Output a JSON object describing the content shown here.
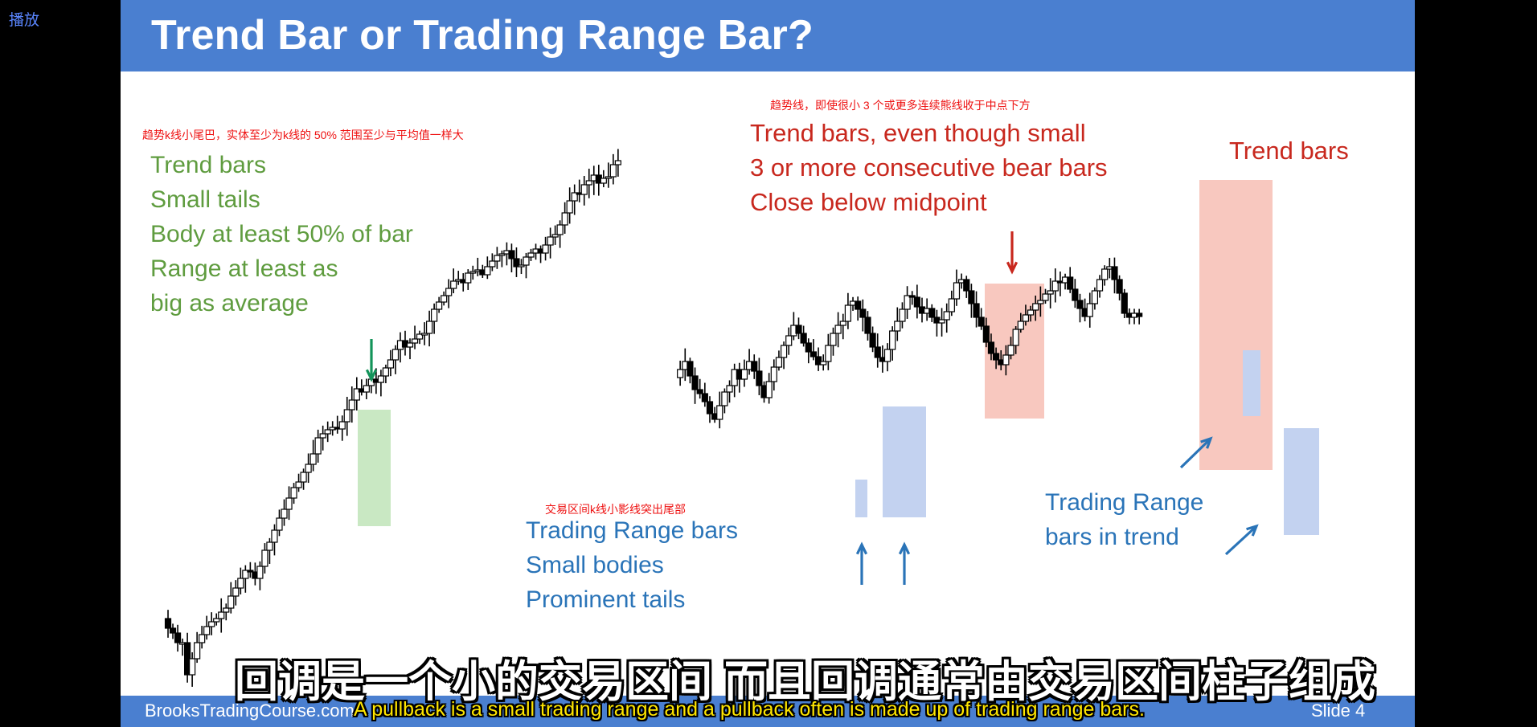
{
  "player": {
    "play_label": "播放"
  },
  "slide": {
    "title": "Trend Bar or Trading Range Bar?",
    "footer_site": "BrooksTradingCourse.com",
    "footer_slide": "Slide  4"
  },
  "annotations": {
    "green": {
      "note_cn": "趋势k线小尾巴，实体至少为k线的 50% 范围至少与平均值一样大",
      "lines": [
        "Trend bars",
        "Small tails",
        "Body at least 50% of bar",
        "Range at least as",
        "big as average"
      ]
    },
    "red": {
      "note_cn": "趋势线，即使很小 3 个或更多连续熊线收于中点下方",
      "lines": [
        "Trend bars, even though small",
        "3 or more consecutive bear bars",
        "Close below midpoint"
      ]
    },
    "trend_bars_right": "Trend bars",
    "blue_center": {
      "note_cn": "交易区间k线小影线突出尾部",
      "lines": [
        "Trading Range bars",
        "Small bodies",
        "Prominent tails"
      ]
    },
    "blue_right": {
      "lines": [
        "Trading Range",
        "bars in trend"
      ]
    }
  },
  "subtitles": {
    "chinese": "回调是一个小的交易区间 而且回调通常由交易区间柱子组成",
    "english": "A pullback is a small trading range  and a pullback often is made up of trading range bars."
  },
  "colors": {
    "title_bar": "#4a7fd0",
    "green_text": "#5f9c3f",
    "red_text": "#c8281e",
    "blue_text": "#2a74b8",
    "green_box": "#c9e8c3",
    "red_box": "#f8c8bf",
    "blue_box": "#c3d2f0"
  },
  "chart_data": {
    "type": "candlestick",
    "title": "",
    "xlabel": "",
    "ylabel": "",
    "note": "price bars shown without axes; values are relative price levels",
    "segments": [
      {
        "name": "",
        "path": [
          720,
          708,
          702,
          690,
          690,
          650,
          670,
          690,
          700,
          710,
          716,
          720,
          728,
          733,
          748,
          758,
          770,
          780,
          778,
          770,
          785,
          805,
          815,
          830,
          845,
          856,
          870,
          883,
          890,
          902,
          912,
          925,
          945,
          950,
          955,
          958,
          956,
          965,
          980,
          992,
          1006,
          1002,
          1010,
          1018,
          1014,
          1022,
          1032,
          1042,
          1055,
          1066,
          1058,
          1063,
          1068,
          1074,
          1075,
          1090,
          1105,
          1114,
          1122,
          1131,
          1140,
          1142,
          1138,
          1150,
          1152,
          1154,
          1148,
          1158,
          1165,
          1172,
          1174,
          1178,
          1168,
          1158,
          1160,
          1170,
          1175,
          1180,
          1175,
          1185,
          1195,
          1198,
          1210,
          1225,
          1240,
          1250,
          1248,
          1260,
          1265,
          1272,
          1262,
          1268,
          1270,
          1285,
          1290
        ]
      },
      {
        "name": "",
        "path": [
          1020,
          1030,
          1040,
          1022,
          1005,
          1000,
          990,
          975,
          968,
          985,
          1002,
          1010,
          1030,
          1018,
          1030,
          1040,
          1028,
          1010,
          995,
          1015,
          1033,
          1045,
          1060,
          1072,
          1085,
          1075,
          1063,
          1052,
          1046,
          1036,
          1040,
          1060,
          1075,
          1085,
          1090,
          1110,
          1115,
          1105,
          1095,
          1075,
          1058,
          1045,
          1040,
          1055,
          1078,
          1090,
          1105,
          1122,
          1120,
          1108,
          1100,
          1106,
          1095,
          1088,
          1092,
          1102,
          1118,
          1138,
          1142,
          1128,
          1112,
          1095,
          1084,
          1064,
          1050,
          1042,
          1036,
          1048,
          1060,
          1080,
          1090,
          1098,
          1104,
          1112,
          1116,
          1124,
          1128,
          1140,
          1138,
          1145,
          1130,
          1116,
          1106,
          1096,
          1112,
          1128,
          1142,
          1155,
          1158,
          1142,
          1125,
          1100,
          1095,
          1100,
          1096
        ]
      }
    ],
    "highlights": [
      {
        "label": "Trend bars",
        "color": "green"
      },
      {
        "label": "Trend bars, even though small",
        "color": "red"
      },
      {
        "label": "Trend bars",
        "color": "red"
      },
      {
        "label": "Trading Range bars",
        "color": "blue"
      },
      {
        "label": "Trading Range bars in trend",
        "color": "blue"
      }
    ]
  }
}
